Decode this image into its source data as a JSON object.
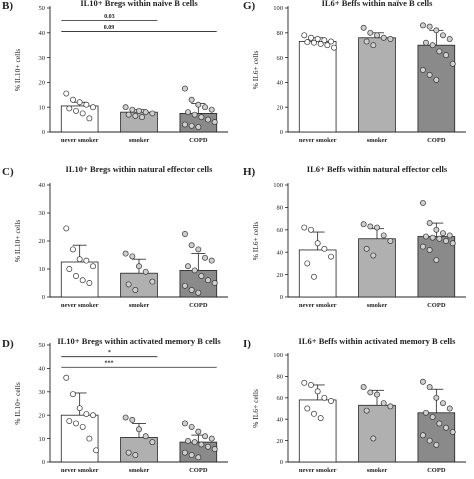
{
  "chart_data": [
    {
      "type": "bar",
      "panel_letter": "B)",
      "title": "IL10+ Bregs within naïve B cells",
      "ylabel": "% IL10+ cells",
      "ylim": [
        0,
        50
      ],
      "yticks": [
        0,
        10,
        20,
        30,
        40,
        50
      ],
      "categories": [
        "never smoker",
        "smoker",
        "COPD"
      ],
      "values": [
        10.5,
        8,
        7.5
      ],
      "errors": [
        1.5,
        1,
        4
      ],
      "bar_colors": [
        "#ffffff",
        "#b0b0b0",
        "#8a8a8a"
      ],
      "points": [
        [
          15.5,
          13,
          12,
          11,
          10,
          9.5,
          8.5,
          7.5,
          5.5
        ],
        [
          10,
          9,
          8.5,
          8,
          7.5,
          7,
          6.5,
          6
        ],
        [
          17.5,
          13,
          11,
          10,
          9,
          8,
          7,
          6,
          5,
          4,
          3,
          2.5,
          2
        ]
      ],
      "significance": [
        {
          "from": 0,
          "to": 1,
          "label": "0.03",
          "y": 45
        },
        {
          "from": 0,
          "to": 2,
          "label": "0.09",
          "y": 40.5
        }
      ]
    },
    {
      "type": "bar",
      "panel_letter": "C)",
      "title": "IL10+ Bregs within natural effector cells",
      "ylabel": "% IL10+ cells",
      "ylim": [
        0,
        40
      ],
      "yticks": [
        0,
        10,
        20,
        30,
        40
      ],
      "categories": [
        "never smoker",
        "smoker",
        "COPD"
      ],
      "values": [
        12.5,
        8.5,
        9.5
      ],
      "errors": [
        6,
        5,
        6
      ],
      "bar_colors": [
        "#ffffff",
        "#b0b0b0",
        "#8a8a8a"
      ],
      "points": [
        [
          24.5,
          17,
          13.5,
          13,
          11,
          10,
          7.5,
          6,
          5
        ],
        [
          15.5,
          14.5,
          11,
          9,
          5.5,
          4.5,
          2.5
        ],
        [
          22.5,
          18.5,
          17,
          14,
          13,
          11,
          9.5,
          7.5,
          6,
          5,
          4,
          2.5,
          1.5
        ]
      ],
      "significance": []
    },
    {
      "type": "bar",
      "panel_letter": "D)",
      "title": "IL10+ Bregs within activated memory B cells",
      "ylabel": "% IL10+ cells",
      "ylim": [
        0,
        50
      ],
      "yticks": [
        0,
        10,
        20,
        30,
        40,
        50
      ],
      "categories": [
        "never smoker",
        "smoker",
        "COPD"
      ],
      "values": [
        20,
        10.5,
        8.5
      ],
      "errors": [
        9.5,
        6,
        3
      ],
      "bar_colors": [
        "#ffffff",
        "#b0b0b0",
        "#8a8a8a"
      ],
      "points": [
        [
          36,
          29,
          23,
          20.5,
          20,
          17.5,
          16.5,
          15,
          10,
          5
        ],
        [
          19,
          18,
          14,
          11,
          8.5,
          4,
          3
        ],
        [
          16.5,
          15,
          13,
          11,
          10,
          9,
          8.5,
          7.5,
          6.5,
          5.5,
          4,
          3,
          2
        ]
      ],
      "significance": [
        {
          "from": 0,
          "to": 1,
          "label": "*",
          "y": 45
        },
        {
          "from": 0,
          "to": 2,
          "label": "***",
          "y": 40.5
        }
      ]
    },
    {
      "type": "bar",
      "panel_letter": "G)",
      "title": "IL6+ Beffs within naïve B cells",
      "ylabel": "% IL6+ cells",
      "ylim": [
        0,
        100
      ],
      "yticks": [
        0,
        20,
        40,
        60,
        80,
        100
      ],
      "categories": [
        "never smoker",
        "smoker",
        "COPD"
      ],
      "values": [
        73,
        76,
        70
      ],
      "errors": [
        3,
        4,
        12
      ],
      "bar_colors": [
        "#ffffff",
        "#b0b0b0",
        "#8a8a8a"
      ],
      "points": [
        [
          78,
          76,
          75,
          74,
          73,
          72.5,
          72,
          71,
          70,
          68
        ],
        [
          84,
          80,
          78,
          76,
          75,
          73,
          70
        ],
        [
          86,
          85,
          82,
          78,
          75,
          72,
          70,
          65,
          62,
          55,
          50,
          46,
          42
        ]
      ],
      "significance": []
    },
    {
      "type": "bar",
      "panel_letter": "H)",
      "title": "IL6+ Beffs within natural effector cells",
      "ylabel": "% IL6+ cells",
      "ylim": [
        0,
        100
      ],
      "yticks": [
        0,
        20,
        40,
        60,
        80,
        100
      ],
      "categories": [
        "never smoker",
        "smoker",
        "COPD"
      ],
      "values": [
        42,
        52,
        54
      ],
      "errors": [
        16,
        9,
        12
      ],
      "bar_colors": [
        "#ffffff",
        "#b0b0b0",
        "#8a8a8a"
      ],
      "points": [
        [
          62,
          60,
          48,
          43,
          36,
          30,
          18
        ],
        [
          65,
          63,
          62,
          55,
          50,
          43,
          37
        ],
        [
          84,
          66,
          60,
          57,
          55,
          54,
          53,
          52,
          50,
          48,
          45,
          42,
          33
        ]
      ],
      "significance": []
    },
    {
      "type": "bar",
      "panel_letter": "I)",
      "title": "IL6+ Beffs within activated memory B cells",
      "ylabel": "% IL6+ cells",
      "ylim": [
        0,
        100
      ],
      "yticks": [
        0,
        20,
        40,
        60,
        80,
        100
      ],
      "categories": [
        "never smoker",
        "smoker",
        "COPD"
      ],
      "values": [
        58,
        53,
        46
      ],
      "errors": [
        14,
        14,
        22
      ],
      "bar_colors": [
        "#ffffff",
        "#b0b0b0",
        "#8a8a8a"
      ],
      "points": [
        [
          74,
          72,
          66,
          60,
          57,
          50,
          45,
          41
        ],
        [
          70,
          65,
          63,
          55,
          52,
          48,
          22
        ],
        [
          75,
          70,
          60,
          55,
          50,
          46,
          42,
          36,
          32,
          28,
          25,
          20,
          16
        ]
      ],
      "significance": []
    }
  ]
}
